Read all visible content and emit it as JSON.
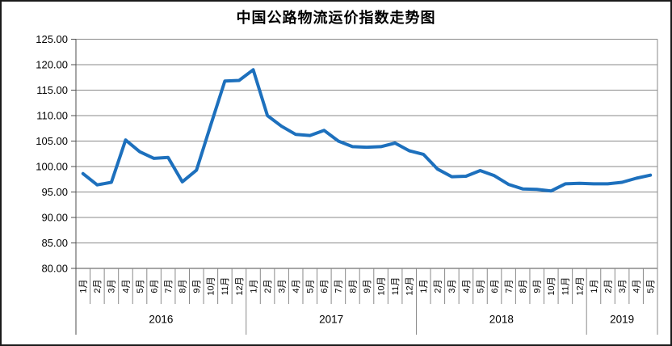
{
  "chart_data": {
    "type": "line",
    "title": "中国公路物流运价指数走势图",
    "categories": [
      "1月",
      "2月",
      "3月",
      "4月",
      "5月",
      "6月",
      "7月",
      "8月",
      "9月",
      "10月",
      "11月",
      "12月",
      "1月",
      "2月",
      "3月",
      "4月",
      "5月",
      "6月",
      "7月",
      "8月",
      "9月",
      "10月",
      "11月",
      "12月",
      "1月",
      "2月",
      "3月",
      "4月",
      "5月",
      "6月",
      "7月",
      "8月",
      "9月",
      "10月",
      "11月",
      "12月",
      "1月",
      "2月",
      "3月",
      "4月",
      "5月"
    ],
    "values": [
      98.6,
      96.4,
      96.9,
      105.2,
      102.9,
      101.6,
      101.8,
      97.0,
      99.3,
      108.1,
      116.8,
      116.9,
      119.0,
      110.0,
      107.9,
      106.3,
      106.1,
      107.1,
      105.0,
      103.9,
      103.8,
      103.9,
      104.6,
      103.1,
      102.4,
      99.5,
      98.0,
      98.1,
      99.2,
      98.2,
      96.5,
      95.6,
      95.5,
      95.2,
      96.6,
      96.7,
      96.6,
      96.6,
      96.9,
      97.7,
      98.3
    ],
    "year_groups": [
      {
        "label": "2016",
        "months": 12
      },
      {
        "label": "2017",
        "months": 12
      },
      {
        "label": "2018",
        "months": 12
      },
      {
        "label": "2019",
        "months": 5
      }
    ],
    "ylim": [
      80,
      125
    ],
    "ytick_step": 5,
    "ytick_labels": [
      "80.00",
      "85.00",
      "90.00",
      "95.00",
      "100.00",
      "105.00",
      "110.00",
      "115.00",
      "120.00",
      "125.00"
    ],
    "grid": true,
    "legend": "none",
    "colors": {
      "line": "#1d70bd",
      "grid": "#8a8a8a",
      "axis": "#4d4d4d",
      "text": "#000000"
    }
  }
}
